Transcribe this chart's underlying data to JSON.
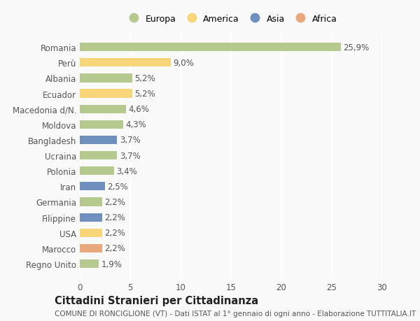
{
  "categories": [
    "Romania",
    "Perù",
    "Albania",
    "Ecuador",
    "Macedonia d/N.",
    "Moldova",
    "Bangladesh",
    "Ucraina",
    "Polonia",
    "Iran",
    "Germania",
    "Filippine",
    "USA",
    "Marocco",
    "Regno Unito"
  ],
  "values": [
    25.9,
    9.0,
    5.2,
    5.2,
    4.6,
    4.3,
    3.7,
    3.7,
    3.4,
    2.5,
    2.2,
    2.2,
    2.2,
    2.2,
    1.9
  ],
  "labels": [
    "25,9%",
    "9,0%",
    "5,2%",
    "5,2%",
    "4,6%",
    "4,3%",
    "3,7%",
    "3,7%",
    "3,4%",
    "2,5%",
    "2,2%",
    "2,2%",
    "2,2%",
    "2,2%",
    "1,9%"
  ],
  "colors": [
    "#b5c98e",
    "#f9d57a",
    "#b5c98e",
    "#f9d57a",
    "#b5c98e",
    "#b5c98e",
    "#6f8fbf",
    "#b5c98e",
    "#b5c98e",
    "#6f8fbf",
    "#b5c98e",
    "#6f8fbf",
    "#f9d57a",
    "#e8a87c",
    "#b5c98e"
  ],
  "continents": [
    "Europa",
    "America",
    "Asia",
    "Africa"
  ],
  "legend_colors": [
    "#b5c98e",
    "#f9d57a",
    "#6f8fbf",
    "#e8a87c"
  ],
  "xlim": [
    0,
    30
  ],
  "xticks": [
    0,
    5,
    10,
    15,
    20,
    25,
    30
  ],
  "title": "Cittadini Stranieri per Cittadinanza",
  "subtitle": "COMUNE DI RONCIGLIONE (VT) - Dati ISTAT al 1° gennaio di ogni anno - Elaborazione TUTTITALIA.IT",
  "background_color": "#f9f9f9",
  "bar_height": 0.55,
  "label_fontsize": 8.5,
  "title_fontsize": 10.5,
  "subtitle_fontsize": 7.5
}
